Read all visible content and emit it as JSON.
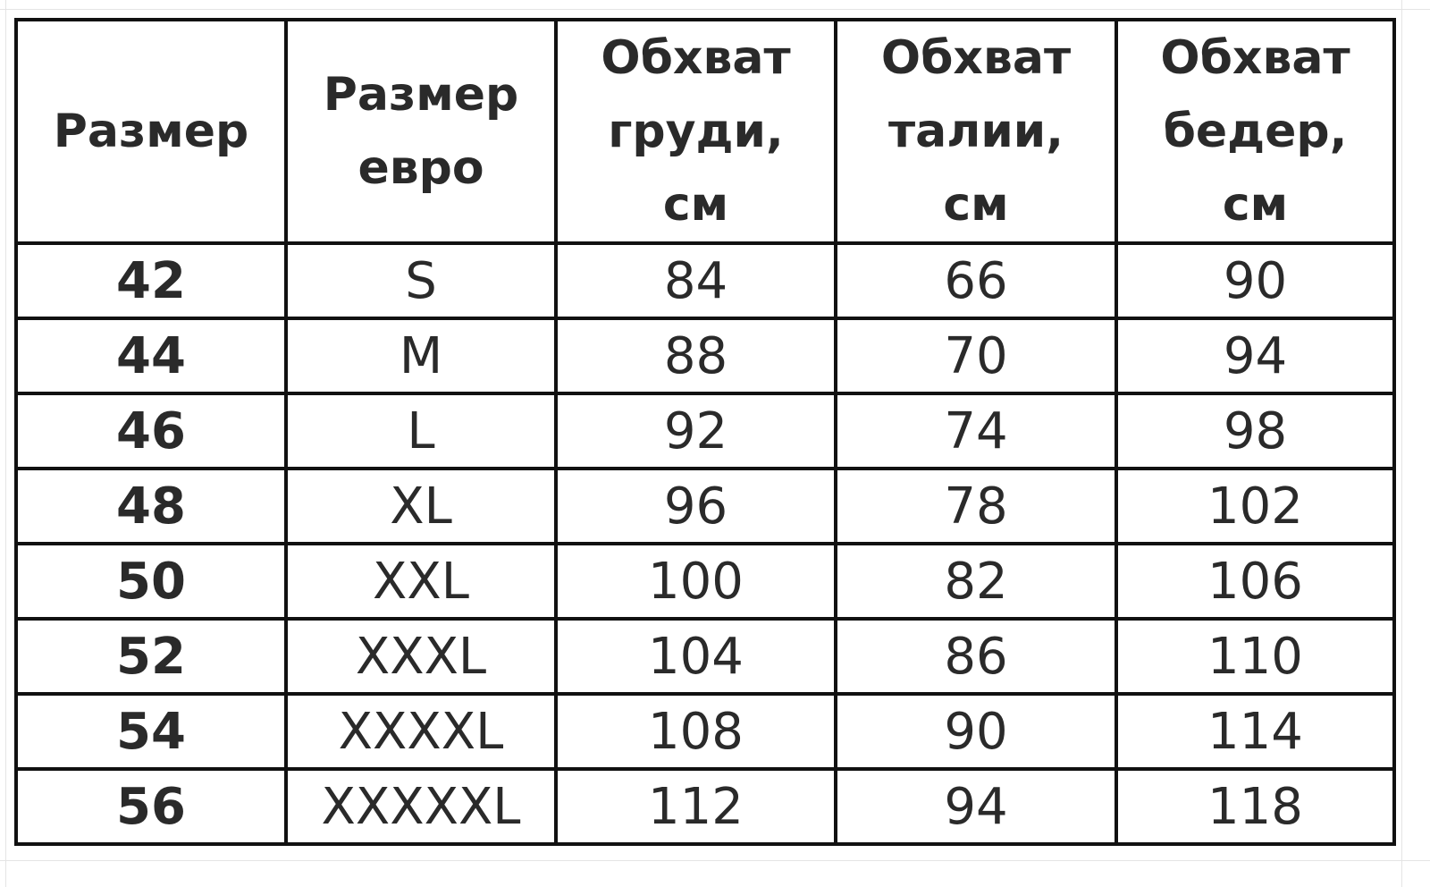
{
  "table": {
    "headers": [
      "Размер",
      "Размер\nевро",
      "Обхват\nгруди,\nсм",
      "Обхват\nталии,\nсм",
      "Обхват\nбедер,\nсм"
    ],
    "rows": [
      [
        42,
        "S",
        84,
        66,
        90
      ],
      [
        44,
        "M",
        88,
        70,
        94
      ],
      [
        46,
        "L",
        92,
        74,
        98
      ],
      [
        48,
        "XL",
        96,
        78,
        102
      ],
      [
        50,
        "XXL",
        100,
        82,
        106
      ],
      [
        52,
        "XXXL",
        104,
        86,
        110
      ],
      [
        54,
        "XXXXL",
        108,
        90,
        114
      ],
      [
        56,
        "XXXXXL",
        112,
        94,
        118
      ]
    ]
  }
}
